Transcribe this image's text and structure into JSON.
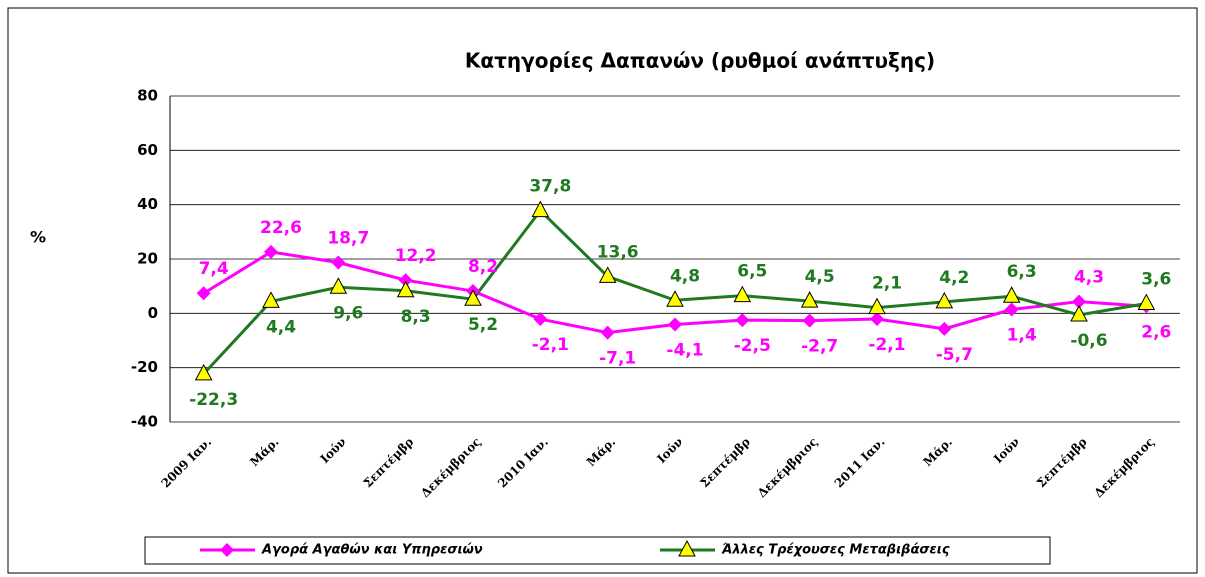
{
  "chart_data": {
    "type": "line",
    "title": "Κατηγορίες Δαπανών (ρυθμοί ανάπτυξης)",
    "y_label": "%",
    "categories": [
      "2009 Ιαν.",
      "Μάρ.",
      "Ιούν",
      "Σεπτέμβρ",
      "Δεκέμβριος",
      "2010 Ιαν.",
      "Μάρ.",
      "Ιούν",
      "Σεπτέμβρ",
      "Δεκέμβριος",
      "2011 Ιαν.",
      "Μάρ.",
      "Ιούν",
      "Σεπτέμβρ",
      "Δεκέμβριος"
    ],
    "series": [
      {
        "name": "Αγορά Αγαθών και Υπηρεσιών",
        "color": "#ff00ff",
        "marker": "diamond",
        "values": [
          7.4,
          22.6,
          18.7,
          12.2,
          8.2,
          -2.1,
          -7.1,
          -4.1,
          -2.5,
          -2.7,
          -2.1,
          -5.7,
          1.4,
          4.3,
          2.6
        ],
        "value_labels": [
          "7,4",
          "22,6",
          "18,7",
          "12,2",
          "8,2",
          "-2,1",
          "-7,1",
          "-4,1",
          "-2,5",
          "-2,7",
          "-2,1",
          "-5,7",
          "1,4",
          "4,3",
          "2,6"
        ]
      },
      {
        "name": "Άλλες Τρέχουσες Μεταβιβάσεις",
        "color": "#1f7a1f",
        "marker": "triangle",
        "values": [
          -22.3,
          4.4,
          9.6,
          8.3,
          5.2,
          37.8,
          13.6,
          4.8,
          6.5,
          4.5,
          2.1,
          4.2,
          6.3,
          -0.6,
          3.6
        ],
        "value_labels": [
          "-22,3",
          "4,4",
          "9,6",
          "8,3",
          "5,2",
          "37,8",
          "13,6",
          "4,8",
          "6,5",
          "4,5",
          "2,1",
          "4,2",
          "6,3",
          "-0,6",
          "3,6"
        ]
      }
    ],
    "ylim": [
      -40,
      80
    ],
    "yticks": [
      -40,
      -20,
      0,
      20,
      40,
      60,
      80
    ],
    "grid": true
  }
}
